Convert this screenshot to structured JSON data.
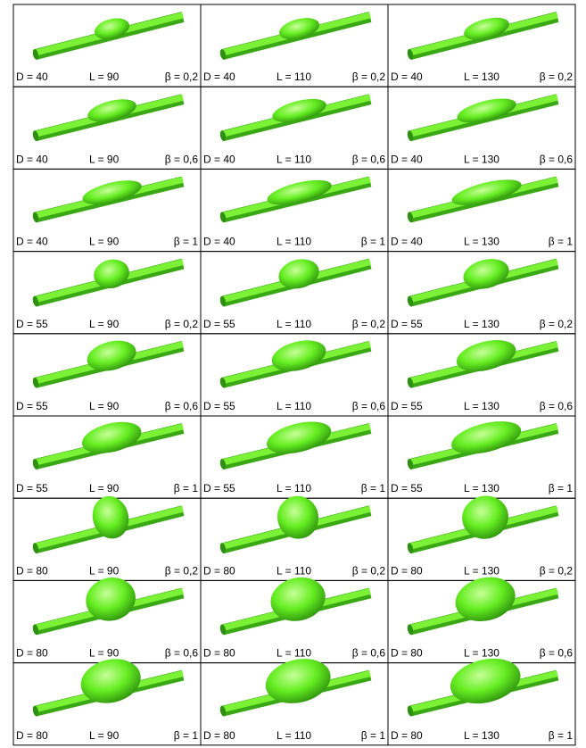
{
  "cells": [
    [
      {
        "d": "D = 40",
        "l": "L = 90",
        "beta": "β = 0,2"
      },
      {
        "d": "D = 40",
        "l": "L = 110",
        "beta": "β = 0,2"
      },
      {
        "d": "D = 40",
        "l": "L = 130",
        "beta": "β = 0,2"
      }
    ],
    [
      {
        "d": "D = 40",
        "l": "L = 90",
        "beta": "β = 0,6"
      },
      {
        "d": "D = 40",
        "l": "L = 110",
        "beta": "β = 0,6"
      },
      {
        "d": "D = 40",
        "l": "L = 130",
        "beta": "β = 0,6"
      }
    ],
    [
      {
        "d": "D = 40",
        "l": "L = 90",
        "beta": "β = 1"
      },
      {
        "d": "D = 40",
        "l": "L = 110",
        "beta": "β = 1"
      },
      {
        "d": "D = 40",
        "l": "L = 130",
        "beta": "β = 1"
      }
    ],
    [
      {
        "d": "D = 55",
        "l": "L = 90",
        "beta": "β = 0,2"
      },
      {
        "d": "D = 55",
        "l": "L = 110",
        "beta": "β = 0,2"
      },
      {
        "d": "D = 55",
        "l": "L = 130",
        "beta": "β = 0,2"
      }
    ],
    [
      {
        "d": "D = 55",
        "l": "L = 90",
        "beta": "β = 0,6"
      },
      {
        "d": "D = 55",
        "l": "L = 110",
        "beta": "β = 0,6"
      },
      {
        "d": "D = 55",
        "l": "L = 130",
        "beta": "β = 0,6"
      }
    ],
    [
      {
        "d": "D = 55",
        "l": "L = 90",
        "beta": "β = 1"
      },
      {
        "d": "D = 55",
        "l": "L = 110",
        "beta": "β = 1"
      },
      {
        "d": "D = 55",
        "l": "L = 130",
        "beta": "β = 1"
      }
    ],
    [
      {
        "d": "D = 80",
        "l": "L = 90",
        "beta": "β = 0,2"
      },
      {
        "d": "D = 80",
        "l": "L = 110",
        "beta": "β = 0,2"
      },
      {
        "d": "D = 80",
        "l": "L = 130",
        "beta": "β = 0,2"
      }
    ],
    [
      {
        "d": "D = 80",
        "l": "L = 90",
        "beta": "β = 0,6"
      },
      {
        "d": "D = 80",
        "l": "L = 110",
        "beta": "β = 0,6"
      },
      {
        "d": "D = 80",
        "l": "L = 130",
        "beta": "β = 0,6"
      }
    ],
    [
      {
        "d": "D = 80",
        "l": "L = 90",
        "beta": "β = 1"
      },
      {
        "d": "D = 80",
        "l": "L = 110",
        "beta": "β = 1"
      },
      {
        "d": "D = 80",
        "l": "L = 130",
        "beta": "β = 1"
      }
    ]
  ]
}
